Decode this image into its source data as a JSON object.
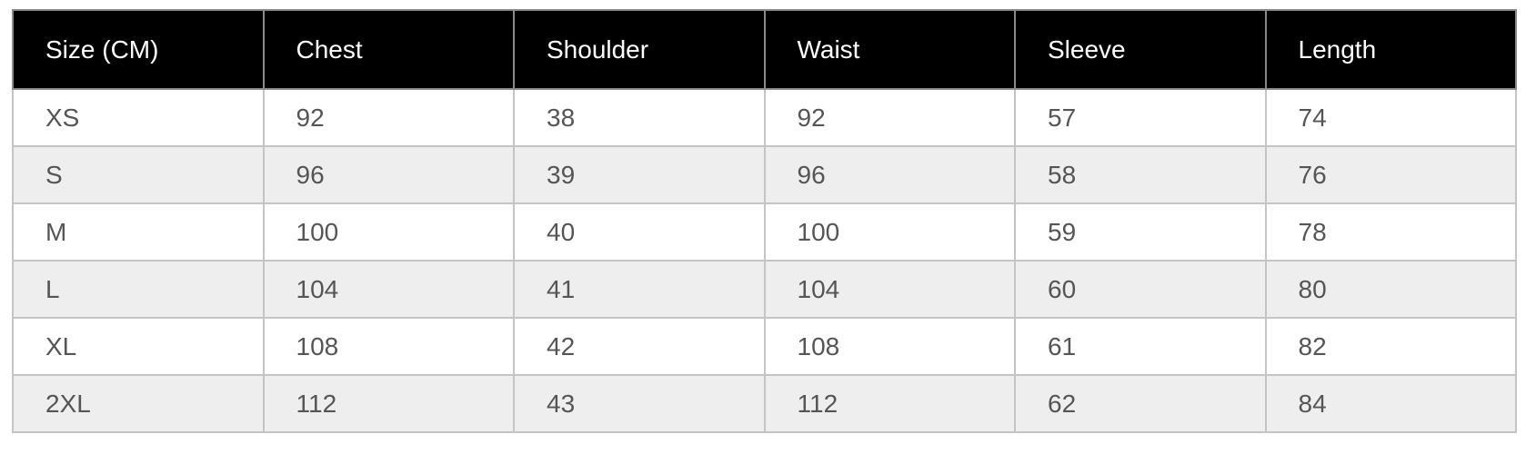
{
  "headers": [
    "Size (CM)",
    "Chest",
    "Shoulder",
    "Waist",
    "Sleeve",
    "Length"
  ],
  "rows": [
    [
      "XS",
      "92",
      "38",
      "92",
      "57",
      "74"
    ],
    [
      "S",
      "96",
      "39",
      "96",
      "58",
      "76"
    ],
    [
      "M",
      "100",
      "40",
      "100",
      "59",
      "78"
    ],
    [
      "L",
      "104",
      "41",
      "104",
      "60",
      "80"
    ],
    [
      "XL",
      "108",
      "42",
      "108",
      "61",
      "82"
    ],
    [
      "2XL",
      "112",
      "43",
      "112",
      "62",
      "84"
    ]
  ],
  "colors": {
    "header_bg": "#000000",
    "header_text": "#ffffff",
    "stripe": "#eeeeee",
    "border": "#c4c4c4"
  }
}
